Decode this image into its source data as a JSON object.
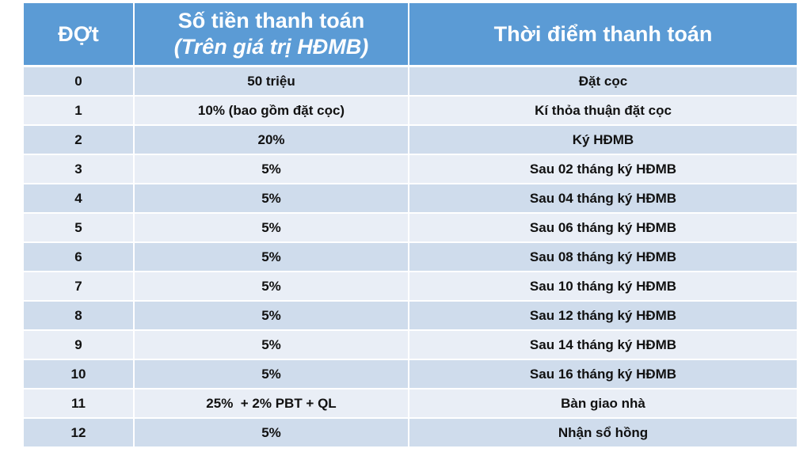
{
  "colors": {
    "header_bg": "#5b9bd5",
    "header_text": "#ffffff",
    "row_dark": "#cfdcec",
    "row_light": "#e9eef6",
    "cell_text": "#111111"
  },
  "table": {
    "headers": {
      "installment": "ĐỢt",
      "amount_line1": "Số tiền thanh toán",
      "amount_line2": "(Trên giá trị HĐMB)",
      "timing": "Thời điểm thanh toán"
    },
    "rows": [
      {
        "installment": "0",
        "amount": "50 triệu",
        "timing": "Đặt cọc"
      },
      {
        "installment": "1",
        "amount": "10% (bao gồm đặt cọc)",
        "timing": "Kí thỏa thuận đặt cọc"
      },
      {
        "installment": "2",
        "amount": "20%",
        "timing": "Ký HĐMB"
      },
      {
        "installment": "3",
        "amount": "5%",
        "timing": "Sau 02 tháng ký HĐMB"
      },
      {
        "installment": "4",
        "amount": "5%",
        "timing": "Sau 04 tháng ký HĐMB"
      },
      {
        "installment": "5",
        "amount": "5%",
        "timing": "Sau 06 tháng ký HĐMB"
      },
      {
        "installment": "6",
        "amount": "5%",
        "timing": "Sau 08 tháng ký HĐMB"
      },
      {
        "installment": "7",
        "amount": "5%",
        "timing": "Sau 10 tháng ký HĐMB"
      },
      {
        "installment": "8",
        "amount": "5%",
        "timing": "Sau 12 tháng ký HĐMB"
      },
      {
        "installment": "9",
        "amount": "5%",
        "timing": "Sau 14 tháng ký HĐMB"
      },
      {
        "installment": "10",
        "amount": "5%",
        "timing": "Sau 16 tháng ký HĐMB"
      },
      {
        "installment": "11",
        "amount": "25%  + 2% PBT + QL",
        "timing": "Bàn giao nhà"
      },
      {
        "installment": "12",
        "amount": "5%",
        "timing": "Nhận sổ hồng"
      }
    ]
  }
}
